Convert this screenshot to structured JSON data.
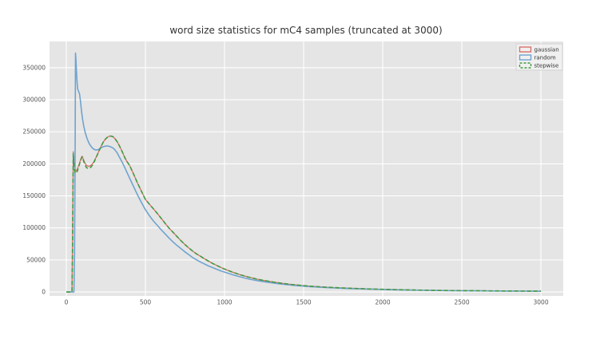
{
  "chart_data": {
    "type": "line",
    "title": "word size statistics for mC4 samples (truncated at 3000)",
    "xlabel": "",
    "ylabel": "",
    "xlim": [
      -106,
      3141
    ],
    "ylim": [
      -6200,
      391000
    ],
    "x_ticks": [
      0,
      500,
      1000,
      1500,
      2000,
      2500,
      3000
    ],
    "y_ticks": [
      0,
      50000,
      100000,
      150000,
      200000,
      250000,
      300000,
      350000
    ],
    "grid": true,
    "grid_color": "#ffffff",
    "panel_background": "#e5e5e5",
    "figure_background": "#ffffff",
    "tick_label_color": "#555555",
    "title_color": "#333333",
    "legend_position": "upper right",
    "legend": {
      "entries": [
        "gaussian",
        "random",
        "stepwise"
      ],
      "background": "#f2f2f2",
      "border_color": "#cccccc",
      "text_color": "#333333"
    },
    "series": [
      {
        "name": "gaussian",
        "color": "#d9706a",
        "style": "solid",
        "points": [
          [
            0,
            0
          ],
          [
            36,
            0
          ],
          [
            40,
            90000
          ],
          [
            44,
            219000
          ],
          [
            48,
            204000
          ],
          [
            54,
            192000
          ],
          [
            62,
            189000
          ],
          [
            70,
            192000
          ],
          [
            78,
            197000
          ],
          [
            86,
            203000
          ],
          [
            94,
            209000
          ],
          [
            100,
            212000
          ],
          [
            108,
            207000
          ],
          [
            116,
            202000
          ],
          [
            128,
            197500
          ],
          [
            140,
            196000
          ],
          [
            152,
            197000
          ],
          [
            164,
            199500
          ],
          [
            176,
            204000
          ],
          [
            190,
            211000
          ],
          [
            205,
            219500
          ],
          [
            220,
            227500
          ],
          [
            235,
            234500
          ],
          [
            250,
            239500
          ],
          [
            265,
            242500
          ],
          [
            280,
            243500
          ],
          [
            295,
            242500
          ],
          [
            310,
            238500
          ],
          [
            325,
            233000
          ],
          [
            340,
            226000
          ],
          [
            355,
            218000
          ],
          [
            370,
            209500
          ],
          [
            385,
            203000
          ],
          [
            400,
            197500
          ],
          [
            425,
            184000
          ],
          [
            450,
            170000
          ],
          [
            475,
            157000
          ],
          [
            500,
            144500
          ],
          [
            525,
            137000
          ],
          [
            550,
            130000
          ],
          [
            575,
            122500
          ],
          [
            600,
            115000
          ],
          [
            625,
            107000
          ],
          [
            650,
            99500
          ],
          [
            675,
            93000
          ],
          [
            700,
            86500
          ],
          [
            725,
            80000
          ],
          [
            750,
            74000
          ],
          [
            775,
            68500
          ],
          [
            800,
            63500
          ],
          [
            825,
            59000
          ],
          [
            850,
            55500
          ],
          [
            875,
            51500
          ],
          [
            900,
            48000
          ],
          [
            925,
            44500
          ],
          [
            950,
            41500
          ],
          [
            975,
            38500
          ],
          [
            1000,
            35800
          ],
          [
            1050,
            31000
          ],
          [
            1100,
            26800
          ],
          [
            1150,
            23300
          ],
          [
            1200,
            20300
          ],
          [
            1250,
            17800
          ],
          [
            1300,
            15800
          ],
          [
            1350,
            14000
          ],
          [
            1400,
            12400
          ],
          [
            1450,
            11000
          ],
          [
            1500,
            9900
          ],
          [
            1550,
            8900
          ],
          [
            1600,
            8100
          ],
          [
            1650,
            7400
          ],
          [
            1700,
            6700
          ],
          [
            1750,
            6200
          ],
          [
            1800,
            5700
          ],
          [
            1850,
            5200
          ],
          [
            1900,
            4800
          ],
          [
            1950,
            4400
          ],
          [
            2000,
            4100
          ],
          [
            2100,
            3500
          ],
          [
            2200,
            3000
          ],
          [
            2300,
            2600
          ],
          [
            2400,
            2300
          ],
          [
            2500,
            2050
          ],
          [
            2600,
            1850
          ],
          [
            2700,
            1650
          ],
          [
            2800,
            1500
          ],
          [
            2900,
            1350
          ],
          [
            3000,
            1250
          ]
        ]
      },
      {
        "name": "random",
        "color": "#6fa3cf",
        "style": "solid",
        "points": [
          [
            0,
            0
          ],
          [
            48,
            0
          ],
          [
            52,
            60000
          ],
          [
            56,
            240000
          ],
          [
            58,
            373000
          ],
          [
            61,
            362000
          ],
          [
            64,
            345000
          ],
          [
            68,
            327000
          ],
          [
            72,
            317000
          ],
          [
            78,
            313000
          ],
          [
            84,
            309000
          ],
          [
            90,
            297000
          ],
          [
            96,
            283000
          ],
          [
            102,
            271000
          ],
          [
            110,
            259000
          ],
          [
            120,
            248000
          ],
          [
            132,
            239000
          ],
          [
            145,
            231500
          ],
          [
            158,
            226500
          ],
          [
            170,
            223500
          ],
          [
            185,
            221500
          ],
          [
            200,
            222000
          ],
          [
            215,
            224000
          ],
          [
            230,
            226500
          ],
          [
            245,
            227500
          ],
          [
            260,
            228000
          ],
          [
            275,
            227000
          ],
          [
            290,
            225500
          ],
          [
            305,
            222500
          ],
          [
            320,
            217500
          ],
          [
            335,
            211000
          ],
          [
            350,
            204000
          ],
          [
            365,
            196500
          ],
          [
            380,
            188500
          ],
          [
            395,
            180500
          ],
          [
            410,
            172500
          ],
          [
            425,
            164500
          ],
          [
            450,
            151500
          ],
          [
            475,
            139500
          ],
          [
            500,
            128500
          ],
          [
            525,
            119000
          ],
          [
            550,
            111000
          ],
          [
            575,
            104000
          ],
          [
            600,
            97000
          ],
          [
            625,
            90500
          ],
          [
            650,
            84000
          ],
          [
            675,
            78000
          ],
          [
            700,
            72500
          ],
          [
            725,
            67500
          ],
          [
            750,
            62500
          ],
          [
            775,
            58000
          ],
          [
            800,
            53500
          ],
          [
            825,
            50000
          ],
          [
            850,
            46500
          ],
          [
            875,
            43500
          ],
          [
            900,
            40500
          ],
          [
            925,
            38000
          ],
          [
            950,
            35500
          ],
          [
            975,
            33000
          ],
          [
            1000,
            31000
          ],
          [
            1050,
            27000
          ],
          [
            1100,
            23500
          ],
          [
            1150,
            20500
          ],
          [
            1200,
            18000
          ],
          [
            1250,
            16000
          ],
          [
            1300,
            14200
          ],
          [
            1350,
            12600
          ],
          [
            1400,
            11200
          ],
          [
            1450,
            10100
          ],
          [
            1500,
            9100
          ],
          [
            1550,
            8200
          ],
          [
            1600,
            7500
          ],
          [
            1650,
            6800
          ],
          [
            1700,
            6300
          ],
          [
            1750,
            5800
          ],
          [
            1800,
            5300
          ],
          [
            1850,
            4900
          ],
          [
            1900,
            4500
          ],
          [
            1950,
            4200
          ],
          [
            2000,
            3900
          ],
          [
            2100,
            3300
          ],
          [
            2200,
            2850
          ],
          [
            2300,
            2500
          ],
          [
            2400,
            2200
          ],
          [
            2500,
            1950
          ],
          [
            2600,
            1750
          ],
          [
            2700,
            1550
          ],
          [
            2800,
            1400
          ],
          [
            2900,
            1300
          ],
          [
            3000,
            1200
          ]
        ]
      },
      {
        "name": "stepwise",
        "color": "#3f9b3f",
        "style": "dashed",
        "points": [
          [
            0,
            0
          ],
          [
            36,
            0
          ],
          [
            40,
            85000
          ],
          [
            44,
            216000
          ],
          [
            48,
            200000
          ],
          [
            54,
            187000
          ],
          [
            62,
            185000
          ],
          [
            70,
            189000
          ],
          [
            78,
            195000
          ],
          [
            86,
            201500
          ],
          [
            94,
            208000
          ],
          [
            100,
            211000
          ],
          [
            108,
            205500
          ],
          [
            116,
            199500
          ],
          [
            128,
            194000
          ],
          [
            140,
            192500
          ],
          [
            152,
            194000
          ],
          [
            164,
            197500
          ],
          [
            176,
            203000
          ],
          [
            190,
            210500
          ],
          [
            205,
            219000
          ],
          [
            220,
            227500
          ],
          [
            235,
            234500
          ],
          [
            250,
            239500
          ],
          [
            265,
            242500
          ],
          [
            280,
            243500
          ],
          [
            295,
            242500
          ],
          [
            310,
            238500
          ],
          [
            325,
            233000
          ],
          [
            340,
            226000
          ],
          [
            355,
            218000
          ],
          [
            370,
            209500
          ],
          [
            385,
            203000
          ],
          [
            400,
            197500
          ],
          [
            425,
            184000
          ],
          [
            450,
            170000
          ],
          [
            475,
            157000
          ],
          [
            500,
            144500
          ],
          [
            525,
            137000
          ],
          [
            550,
            130000
          ],
          [
            575,
            122500
          ],
          [
            600,
            115000
          ],
          [
            625,
            107000
          ],
          [
            650,
            99500
          ],
          [
            675,
            93000
          ],
          [
            700,
            86500
          ],
          [
            725,
            80000
          ],
          [
            750,
            74000
          ],
          [
            775,
            68500
          ],
          [
            800,
            63500
          ],
          [
            825,
            59000
          ],
          [
            850,
            55500
          ],
          [
            875,
            51500
          ],
          [
            900,
            48000
          ],
          [
            925,
            44500
          ],
          [
            950,
            41500
          ],
          [
            975,
            38500
          ],
          [
            1000,
            35800
          ],
          [
            1050,
            31000
          ],
          [
            1100,
            26800
          ],
          [
            1150,
            23300
          ],
          [
            1200,
            20300
          ],
          [
            1250,
            17800
          ],
          [
            1300,
            15800
          ],
          [
            1350,
            14000
          ],
          [
            1400,
            12400
          ],
          [
            1450,
            11000
          ],
          [
            1500,
            9900
          ],
          [
            1550,
            8900
          ],
          [
            1600,
            8100
          ],
          [
            1650,
            7400
          ],
          [
            1700,
            6700
          ],
          [
            1750,
            6200
          ],
          [
            1800,
            5700
          ],
          [
            1850,
            5200
          ],
          [
            1900,
            4800
          ],
          [
            1950,
            4400
          ],
          [
            2000,
            4100
          ],
          [
            2100,
            3500
          ],
          [
            2200,
            3000
          ],
          [
            2300,
            2600
          ],
          [
            2400,
            2300
          ],
          [
            2500,
            2050
          ],
          [
            2600,
            1850
          ],
          [
            2700,
            1650
          ],
          [
            2800,
            1500
          ],
          [
            2900,
            1350
          ],
          [
            3000,
            1250
          ]
        ]
      }
    ]
  }
}
